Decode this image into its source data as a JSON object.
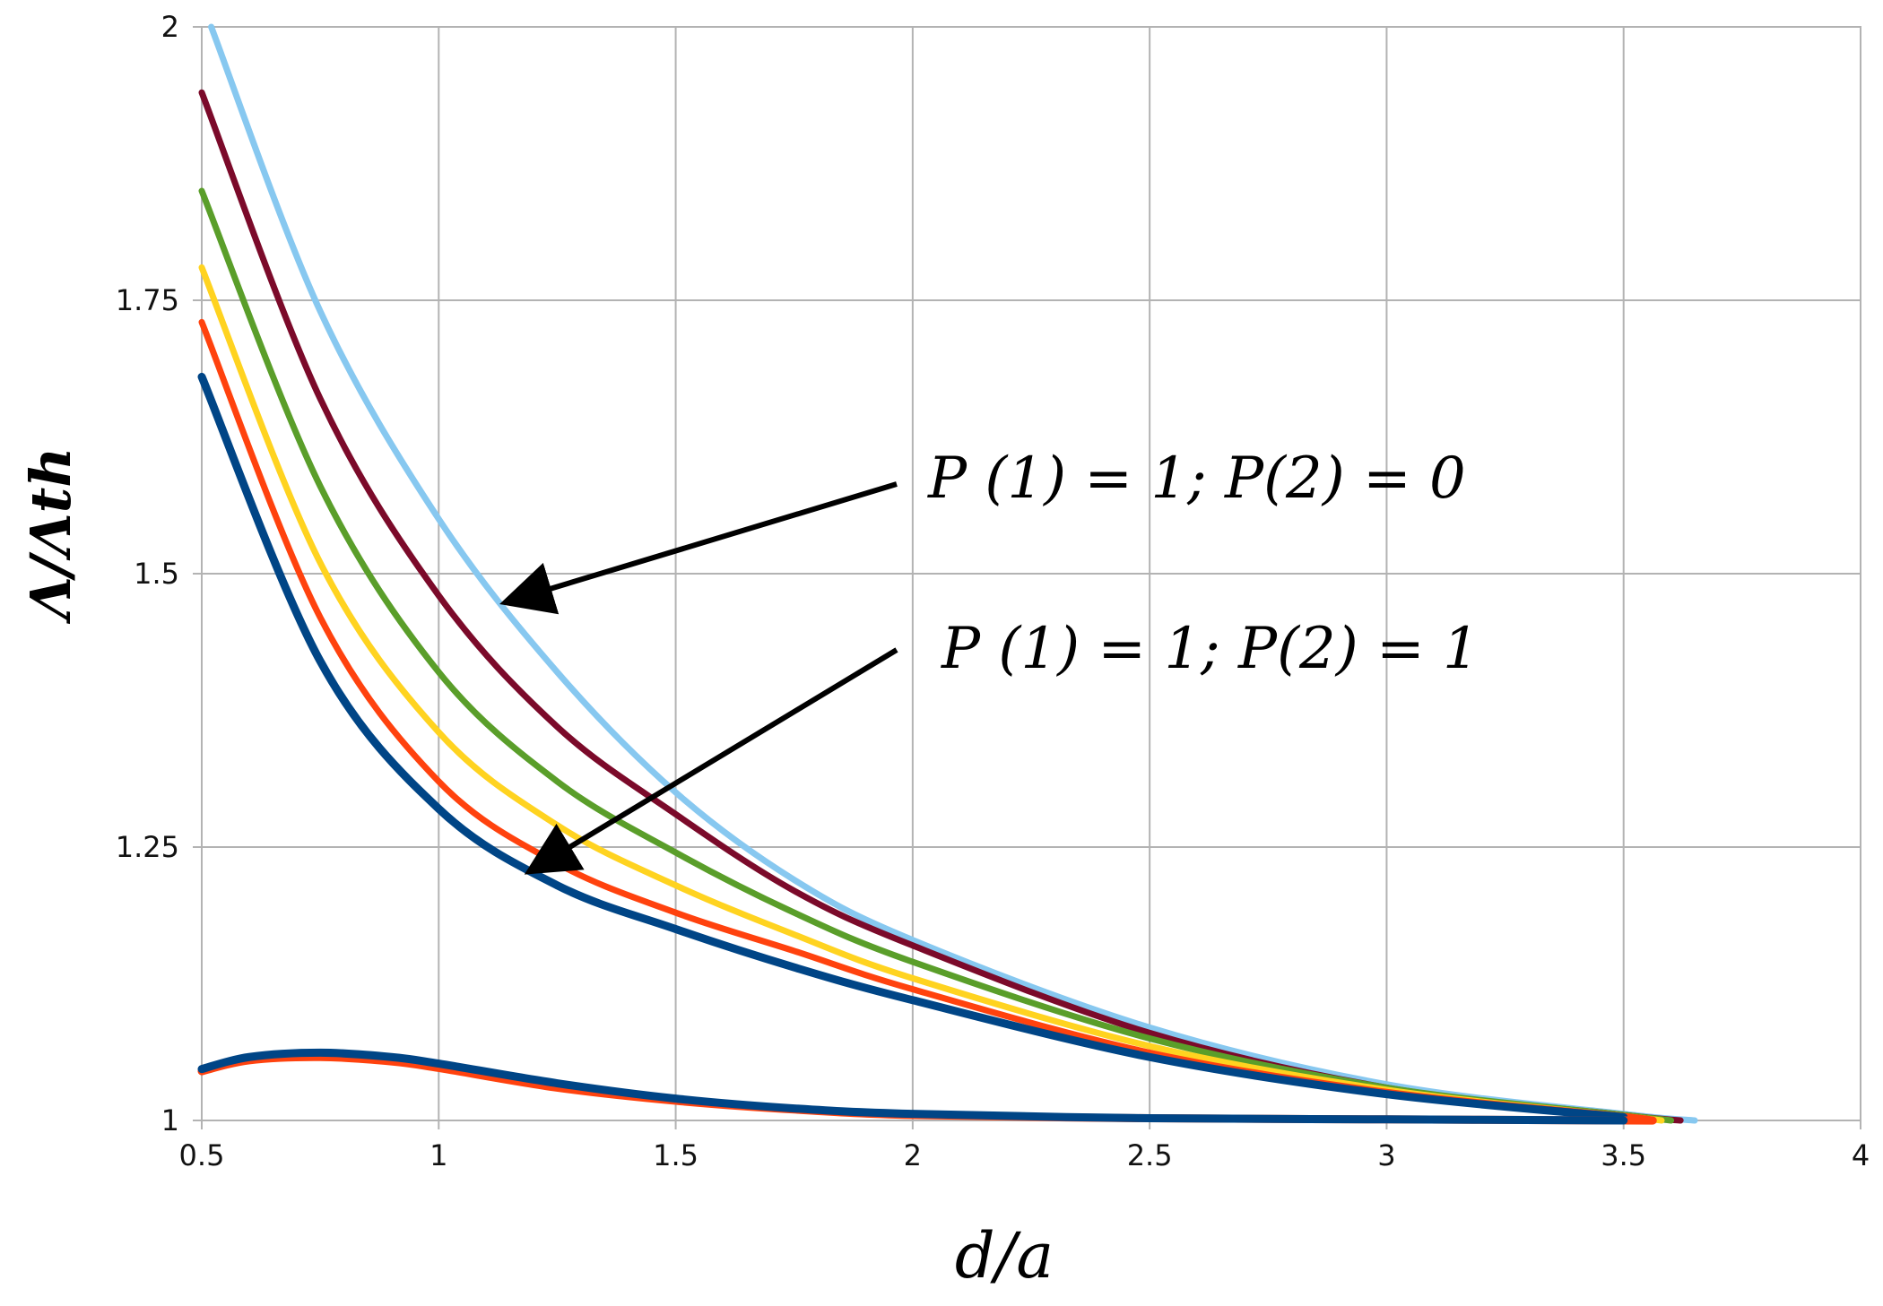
{
  "chart_data": {
    "type": "line",
    "xlabel": "d/a",
    "ylabel": "Λ/Λth",
    "xlim": [
      0.5,
      4
    ],
    "ylim": [
      1,
      2
    ],
    "xticks": [
      "0.5",
      "1",
      "1.5",
      "2",
      "2.5",
      "3",
      "3.5",
      "4"
    ],
    "yticks": [
      "1",
      "1.25",
      "1.5",
      "1.75",
      "2"
    ],
    "grid": true,
    "series": [
      {
        "color": "#87c8f0",
        "x": [
          0.52,
          0.75,
          1.0,
          1.25,
          1.5,
          1.75,
          2.0,
          2.5,
          3.0,
          3.5,
          3.65
        ],
        "y": [
          2.0,
          1.74,
          1.55,
          1.41,
          1.3,
          1.22,
          1.165,
          1.085,
          1.033,
          1.006,
          1.0
        ]
      },
      {
        "color": "#7b0a2a",
        "x": [
          0.5,
          0.75,
          1.0,
          1.25,
          1.5,
          1.75,
          2.0,
          2.5,
          3.0,
          3.5,
          3.62
        ],
        "y": [
          1.94,
          1.66,
          1.48,
          1.36,
          1.28,
          1.21,
          1.16,
          1.08,
          1.03,
          1.005,
          1.0
        ]
      },
      {
        "color": "#5a9e2a",
        "x": [
          0.5,
          0.75,
          1.0,
          1.25,
          1.5,
          1.75,
          2.0,
          2.5,
          3.0,
          3.5,
          3.6
        ],
        "y": [
          1.85,
          1.58,
          1.41,
          1.31,
          1.245,
          1.19,
          1.145,
          1.075,
          1.03,
          1.005,
          1.0
        ]
      },
      {
        "color": "#ffd320",
        "x": [
          0.5,
          0.75,
          1.0,
          1.25,
          1.5,
          1.75,
          2.0,
          2.5,
          3.0,
          3.5,
          3.58
        ],
        "y": [
          1.78,
          1.51,
          1.355,
          1.27,
          1.215,
          1.17,
          1.13,
          1.068,
          1.028,
          1.004,
          1.0
        ]
      },
      {
        "color": "#ff420e",
        "x": [
          0.5,
          0.75,
          1.0,
          1.25,
          1.5,
          1.75,
          2.0,
          2.5,
          3.0,
          3.5,
          3.56
        ],
        "y": [
          1.73,
          1.46,
          1.31,
          1.235,
          1.19,
          1.155,
          1.12,
          1.062,
          1.026,
          1.004,
          1.0
        ]
      },
      {
        "color": "#004586",
        "x": [
          0.5,
          0.75,
          1.0,
          1.25,
          1.5,
          1.75,
          2.0,
          2.5,
          3.0,
          3.5
        ],
        "y": [
          1.68,
          1.42,
          1.285,
          1.215,
          1.175,
          1.14,
          1.11,
          1.058,
          1.024,
          1.003
        ]
      },
      {
        "color": "#ff420e",
        "x": [
          0.5,
          0.6,
          0.75,
          0.9,
          1.0,
          1.25,
          1.5,
          1.75,
          2.0,
          2.5,
          3.0,
          3.5,
          3.56
        ],
        "y": [
          1.045,
          1.055,
          1.058,
          1.054,
          1.048,
          1.03,
          1.018,
          1.01,
          1.005,
          1.002,
          1.001,
          1.0,
          1.0
        ]
      },
      {
        "color": "#004586",
        "x": [
          0.5,
          0.6,
          0.75,
          0.9,
          1.0,
          1.25,
          1.5,
          1.75,
          2.0,
          2.5,
          3.0,
          3.5
        ],
        "y": [
          1.047,
          1.058,
          1.062,
          1.058,
          1.052,
          1.034,
          1.02,
          1.011,
          1.006,
          1.002,
          1.001,
          1.0
        ]
      }
    ],
    "annotations": [
      {
        "text": "P (1) = 1; P(2) = 0",
        "label_pos_data": [
          1.5,
          1.58
        ],
        "arrow_tip": [
          1.15,
          1.475
        ]
      },
      {
        "text": "P (1) = 1; P(2) = 1",
        "label_pos_data": [
          1.5,
          1.42
        ],
        "arrow_tip": [
          1.2,
          1.23
        ]
      }
    ]
  }
}
